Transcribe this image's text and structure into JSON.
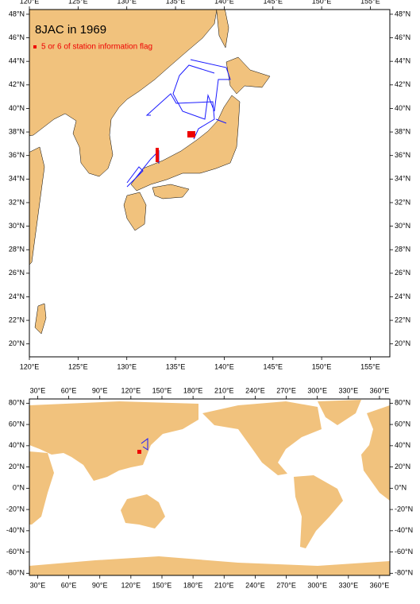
{
  "top_map": {
    "title": "8JAC in 1969",
    "legend": "5 or 6 of station information flag",
    "lonlim": [
      120,
      157
    ],
    "latlim": [
      18.9,
      48.4
    ],
    "lon_ticks": [
      {
        "value": 120,
        "label": "120°E"
      },
      {
        "value": 125,
        "label": "125°E"
      },
      {
        "value": 130,
        "label": "130°E"
      },
      {
        "value": 135,
        "label": "135°E"
      },
      {
        "value": 140,
        "label": "140°E"
      },
      {
        "value": 145,
        "label": "145°E"
      },
      {
        "value": 150,
        "label": "150°E"
      },
      {
        "value": 155,
        "label": "155°E"
      }
    ],
    "lat_ticks": [
      {
        "value": 20,
        "label": "20°N"
      },
      {
        "value": 22,
        "label": "22°N"
      },
      {
        "value": 24,
        "label": "24°N"
      },
      {
        "value": 26,
        "label": "26°N"
      },
      {
        "value": 28,
        "label": "28°N"
      },
      {
        "value": 30,
        "label": "30°N"
      },
      {
        "value": 32,
        "label": "32°N"
      },
      {
        "value": 34,
        "label": "34°N"
      },
      {
        "value": 36,
        "label": "36°N"
      },
      {
        "value": 38,
        "label": "38°N"
      },
      {
        "value": 40,
        "label": "40°N"
      },
      {
        "value": 42,
        "label": "42°N"
      },
      {
        "value": 44,
        "label": "44°N"
      },
      {
        "value": 46,
        "label": "46°N"
      },
      {
        "value": 48,
        "label": "48°N"
      }
    ]
  },
  "world_map": {
    "lonlim": [
      22,
      370
    ],
    "latlim": [
      -82,
      84
    ],
    "lon_ticks": [
      {
        "value": 30,
        "label": "30°E"
      },
      {
        "value": 60,
        "label": "60°E"
      },
      {
        "value": 90,
        "label": "90°E"
      },
      {
        "value": 120,
        "label": "120°E"
      },
      {
        "value": 150,
        "label": "150°E"
      },
      {
        "value": 180,
        "label": "180°E"
      },
      {
        "value": 210,
        "label": "210°E"
      },
      {
        "value": 240,
        "label": "240°E"
      },
      {
        "value": 270,
        "label": "270°E"
      },
      {
        "value": 300,
        "label": "300°E"
      },
      {
        "value": 330,
        "label": "330°E"
      },
      {
        "value": 360,
        "label": "360°E"
      }
    ],
    "lat_ticks": [
      {
        "value": -80,
        "label": "-80°N"
      },
      {
        "value": -60,
        "label": "-60°N"
      },
      {
        "value": -40,
        "label": "-40°N"
      },
      {
        "value": -20,
        "label": "-20°N"
      },
      {
        "value": 0,
        "label": "0°N"
      },
      {
        "value": 20,
        "label": "20°N"
      },
      {
        "value": 40,
        "label": "40°N"
      },
      {
        "value": 60,
        "label": "60°N"
      },
      {
        "value": 80,
        "label": "80°N"
      }
    ]
  }
}
